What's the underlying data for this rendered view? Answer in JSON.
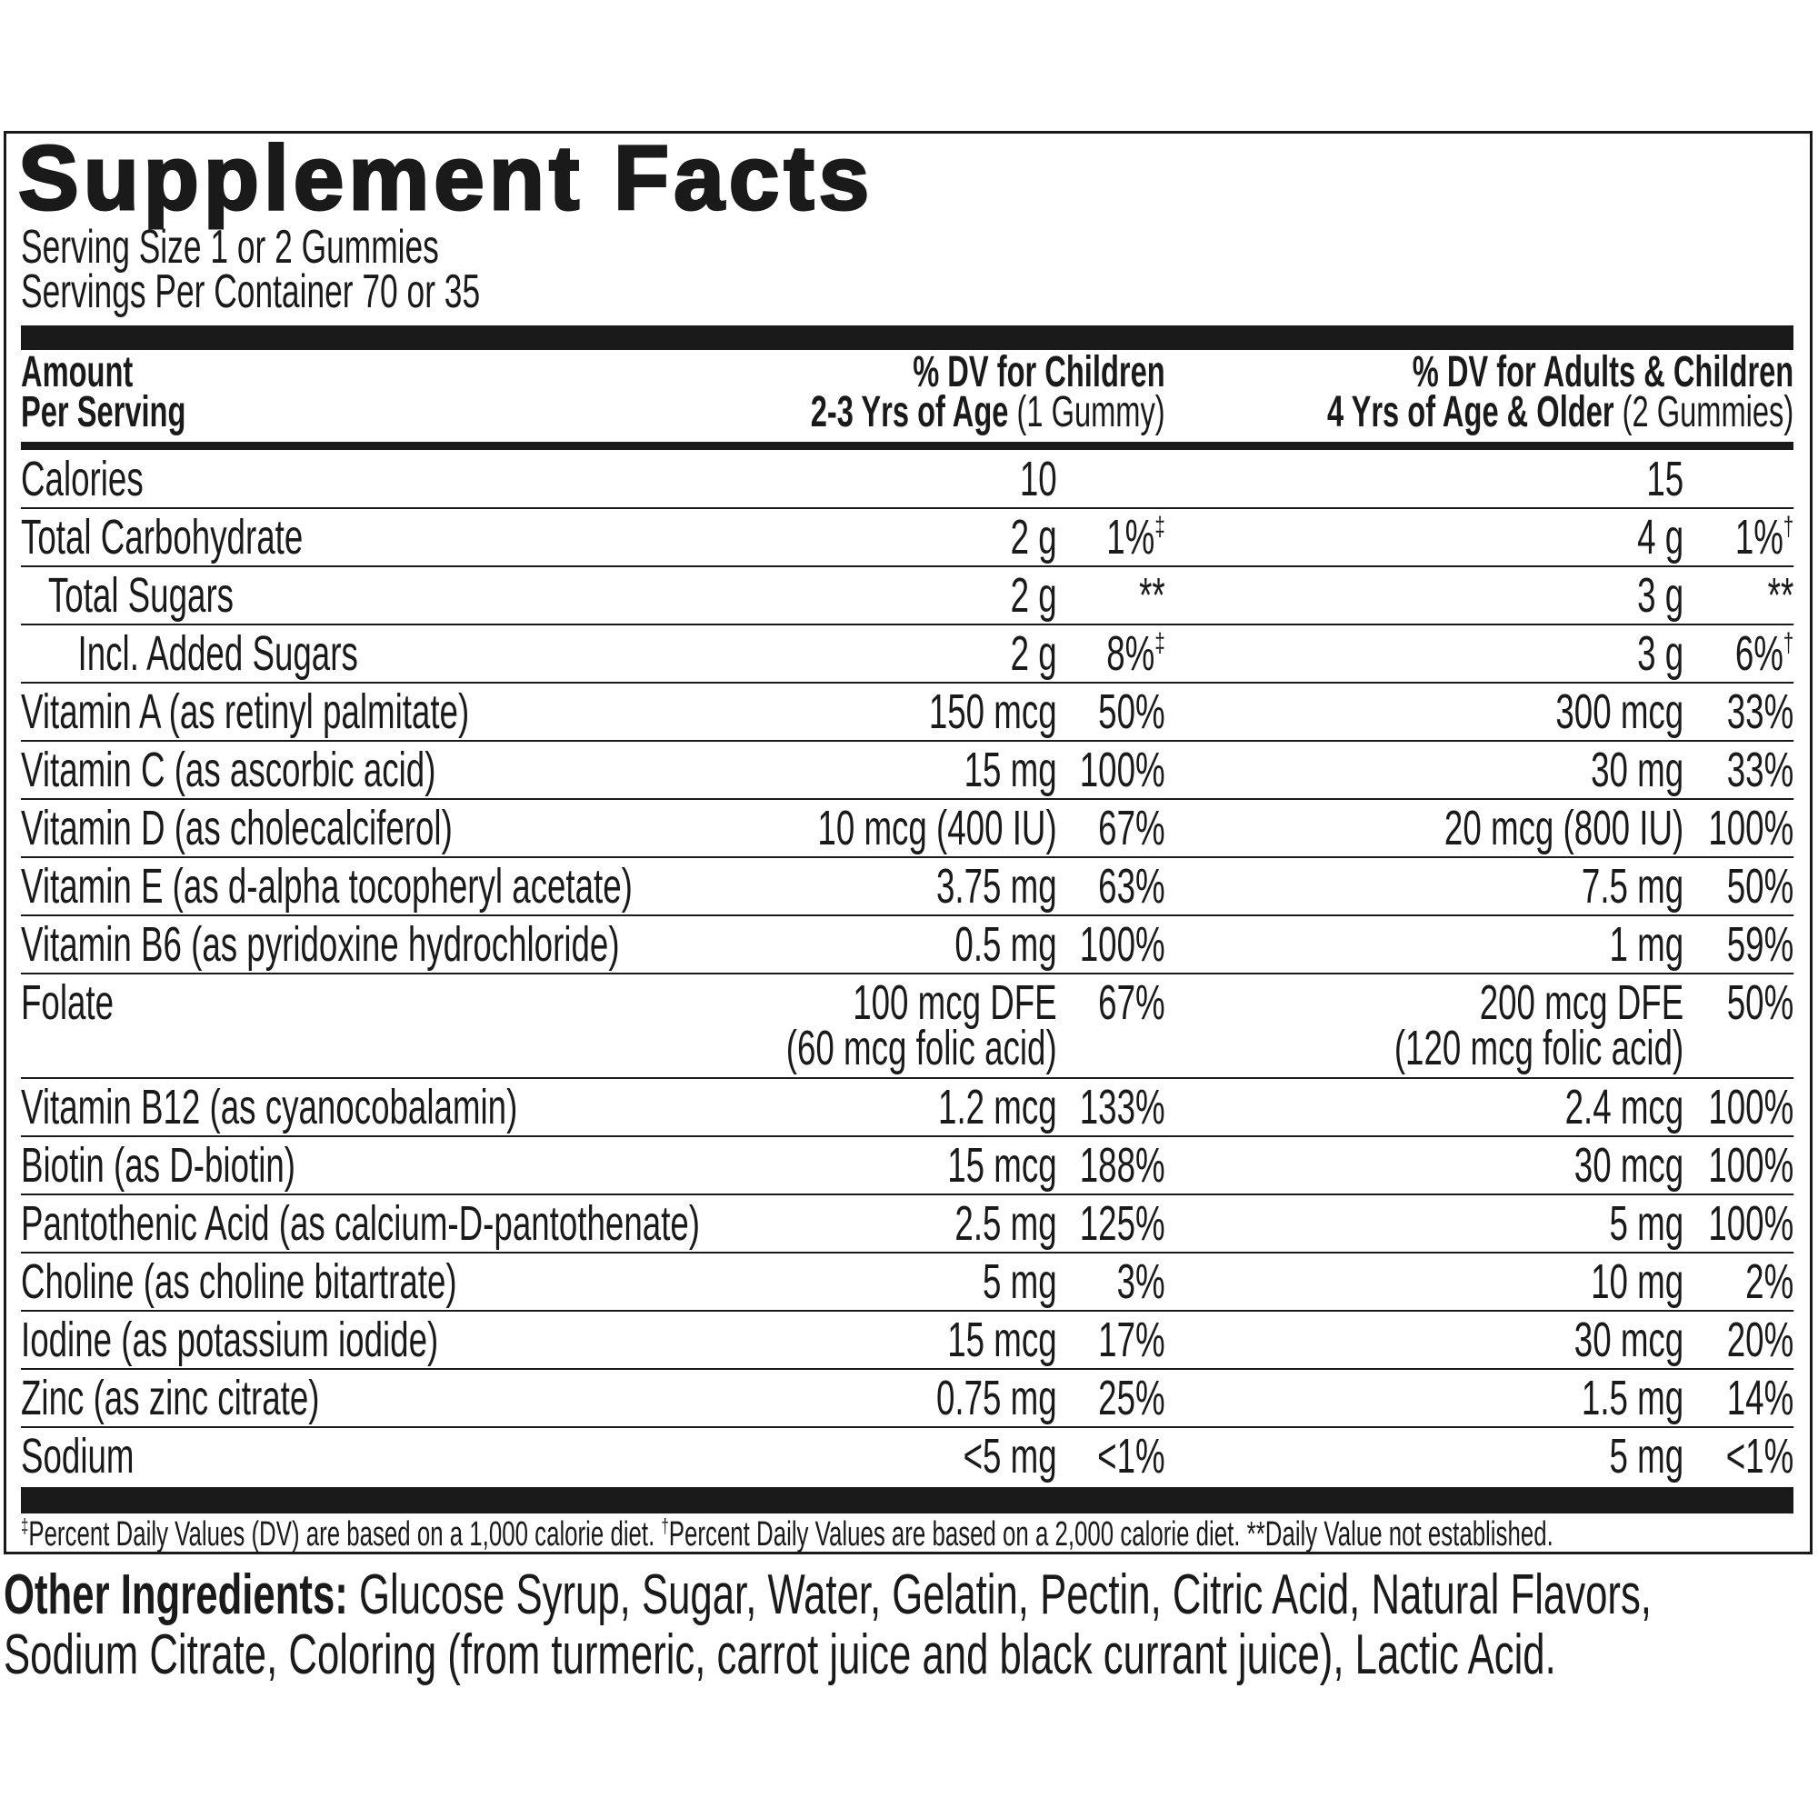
{
  "title": "Supplement Facts",
  "serving_size": "Serving Size 1 or 2 Gummies",
  "servings_per_container": "Servings Per Container 70 or 35",
  "header": {
    "amount_line1": "Amount",
    "amount_line2": "Per Serving",
    "child_line1": "% DV for Children",
    "child_line2_bold": "2-3 Yrs of Age",
    "child_line2_light": " (1 Gummy)",
    "adult_line1": "% DV for Adults & Children",
    "adult_line2_bold": "4 Yrs of Age & Older",
    "adult_line2_light": " (2 Gummies)"
  },
  "rows": [
    {
      "label": "Calories",
      "indent": 0,
      "child_amount": "10",
      "child_dv": "",
      "child_mark": "",
      "adult_amount": "15",
      "adult_dv": "",
      "adult_mark": ""
    },
    {
      "label": "Total Carbohydrate",
      "indent": 0,
      "child_amount": "2 g",
      "child_dv": "1%",
      "child_mark": "‡",
      "adult_amount": "4 g",
      "adult_dv": "1%",
      "adult_mark": "†"
    },
    {
      "label": "Total Sugars",
      "indent": 1,
      "child_amount": "2 g",
      "child_dv": "**",
      "child_mark": "",
      "adult_amount": "3 g",
      "adult_dv": "**",
      "adult_mark": ""
    },
    {
      "label": "Incl. Added Sugars",
      "indent": 2,
      "child_amount": "2 g",
      "child_dv": "8%",
      "child_mark": "‡",
      "adult_amount": "3 g",
      "adult_dv": "6%",
      "adult_mark": "†"
    },
    {
      "label": "Vitamin A (as retinyl palmitate)",
      "indent": 0,
      "child_amount": "150 mcg",
      "child_dv": "50%",
      "child_mark": "",
      "adult_amount": "300 mcg",
      "adult_dv": "33%",
      "adult_mark": ""
    },
    {
      "label": "Vitamin C (as ascorbic acid)",
      "indent": 0,
      "child_amount": "15 mg",
      "child_dv": "100%",
      "child_mark": "",
      "adult_amount": "30 mg",
      "adult_dv": "33%",
      "adult_mark": ""
    },
    {
      "label": "Vitamin D (as cholecalciferol)",
      "indent": 0,
      "child_amount": "10 mcg (400 IU)",
      "child_dv": "67%",
      "child_mark": "",
      "adult_amount": "20 mcg (800 IU)",
      "adult_dv": "100%",
      "adult_mark": ""
    },
    {
      "label": "Vitamin E (as d-alpha tocopheryl acetate)",
      "indent": 0,
      "child_amount": "3.75 mg",
      "child_dv": "63%",
      "child_mark": "",
      "adult_amount": "7.5 mg",
      "adult_dv": "50%",
      "adult_mark": ""
    },
    {
      "label": "Vitamin B6 (as pyridoxine hydrochloride)",
      "indent": 0,
      "child_amount": "0.5 mg",
      "child_dv": "100%",
      "child_mark": "",
      "adult_amount": "1 mg",
      "adult_dv": "59%",
      "adult_mark": ""
    },
    {
      "label": "Folate",
      "indent": 0,
      "child_amount": "100 mcg DFE",
      "child_amount2": "(60 mcg folic acid)",
      "child_dv": "67%",
      "child_mark": "",
      "adult_amount": "200 mcg DFE",
      "adult_amount2": "(120 mcg folic acid)",
      "adult_dv": "50%",
      "adult_mark": ""
    },
    {
      "label": "Vitamin B12 (as cyanocobalamin)",
      "indent": 0,
      "child_amount": "1.2 mcg",
      "child_dv": "133%",
      "child_mark": "",
      "adult_amount": "2.4 mcg",
      "adult_dv": "100%",
      "adult_mark": ""
    },
    {
      "label": "Biotin (as D-biotin)",
      "indent": 0,
      "child_amount": "15 mcg",
      "child_dv": "188%",
      "child_mark": "",
      "adult_amount": "30 mcg",
      "adult_dv": "100%",
      "adult_mark": ""
    },
    {
      "label": "Pantothenic Acid (as calcium-D-pantothenate)",
      "indent": 0,
      "child_amount": "2.5 mg",
      "child_dv": "125%",
      "child_mark": "",
      "adult_amount": "5 mg",
      "adult_dv": "100%",
      "adult_mark": ""
    },
    {
      "label": "Choline (as choline bitartrate)",
      "indent": 0,
      "child_amount": "5 mg",
      "child_dv": "3%",
      "child_mark": "",
      "adult_amount": "10 mg",
      "adult_dv": "2%",
      "adult_mark": ""
    },
    {
      "label": "Iodine (as potassium iodide)",
      "indent": 0,
      "child_amount": "15 mcg",
      "child_dv": "17%",
      "child_mark": "",
      "adult_amount": "30 mcg",
      "adult_dv": "20%",
      "adult_mark": ""
    },
    {
      "label": "Zinc (as zinc citrate)",
      "indent": 0,
      "child_amount": "0.75 mg",
      "child_dv": "25%",
      "child_mark": "",
      "adult_amount": "1.5 mg",
      "adult_dv": "14%",
      "adult_mark": ""
    },
    {
      "label": "Sodium",
      "indent": 0,
      "child_amount": "<5 mg",
      "child_dv": "<1%",
      "child_mark": "",
      "adult_amount": "5 mg",
      "adult_dv": "<1%",
      "adult_mark": ""
    }
  ],
  "footnote": {
    "mark1": "‡",
    "text1": "Percent Daily Values (DV) are based on a 1,000 calorie diet. ",
    "mark2": "†",
    "text2": "Percent Daily Values are based on a 2,000 calorie diet. ",
    "text3": "**Daily Value not established."
  },
  "other_ingredients": {
    "label": "Other Ingredients:",
    "text": " Glucose Syrup, Sugar, Water, Gelatin, Pectin, Citric Acid, Natural Flavors, Sodium Citrate, Coloring (from turmeric, carrot juice and black currant juice), Lactic Acid."
  }
}
